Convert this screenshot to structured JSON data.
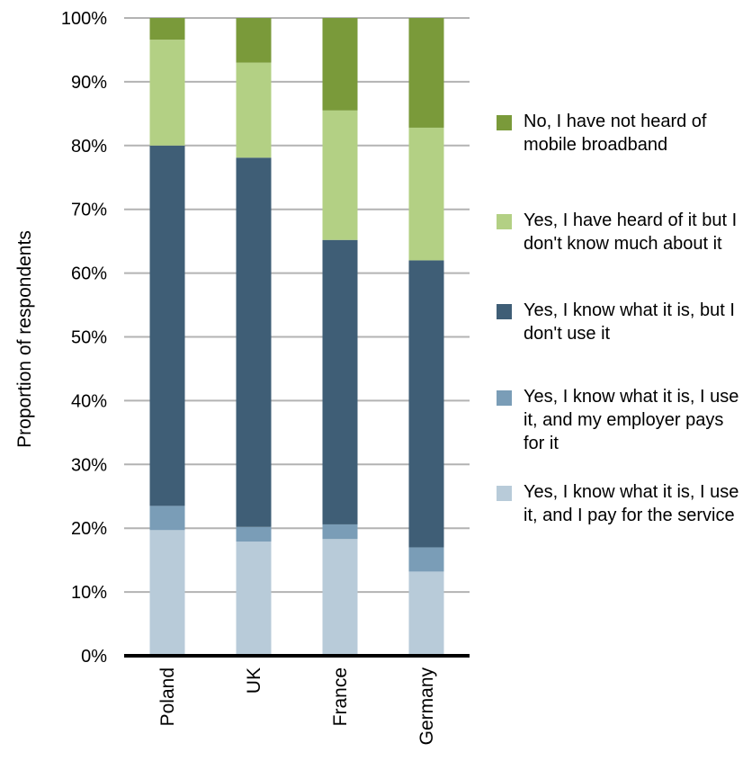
{
  "chart_data": {
    "type": "bar",
    "stacked": true,
    "categories": [
      "Poland",
      "UK",
      "France",
      "Germany"
    ],
    "ylabel": "Proportion of respondents",
    "ylim": [
      0,
      100
    ],
    "yticks": [
      "0%",
      "10%",
      "20%",
      "30%",
      "40%",
      "50%",
      "60%",
      "70%",
      "80%",
      "90%",
      "100%"
    ],
    "grid": true,
    "legend_position": "right",
    "series": [
      {
        "name": "Yes, I know what it is, I use it, and I pay for the service",
        "color": "#b8cbd9",
        "values": [
          19.7,
          17.9,
          18.3,
          13.2
        ]
      },
      {
        "name": "Yes, I know what it is, I use it, and my employer pays for it",
        "color": "#7a9db7",
        "values": [
          3.8,
          2.3,
          2.3,
          3.8
        ]
      },
      {
        "name": "Yes, I know what it is, but I don't use it",
        "color": "#3f5e76",
        "values": [
          56.5,
          57.9,
          44.6,
          45.0
        ]
      },
      {
        "name": "Yes, I have heard of it but I don't know much about it",
        "color": "#b3d084",
        "values": [
          16.6,
          14.9,
          20.3,
          20.8
        ]
      },
      {
        "name": "No, I have not heard of mobile broadband",
        "color": "#7a9a3a",
        "values": [
          3.4,
          7.0,
          14.5,
          17.2
        ]
      }
    ]
  },
  "legend": [
    {
      "label": "No, I have not heard of mobile broadband",
      "color": "#7a9a3a"
    },
    {
      "label": "Yes, I have heard of it but I don't know much about it",
      "color": "#b3d084"
    },
    {
      "label": "Yes, I know what it is, but I don't use it",
      "color": "#3f5e76"
    },
    {
      "label": "Yes, I know what it is, I use it, and my employer pays for it",
      "color": "#7a9db7"
    },
    {
      "label": "Yes, I know what it is, I use it, and I pay for the service",
      "color": "#b8cbd9"
    }
  ]
}
